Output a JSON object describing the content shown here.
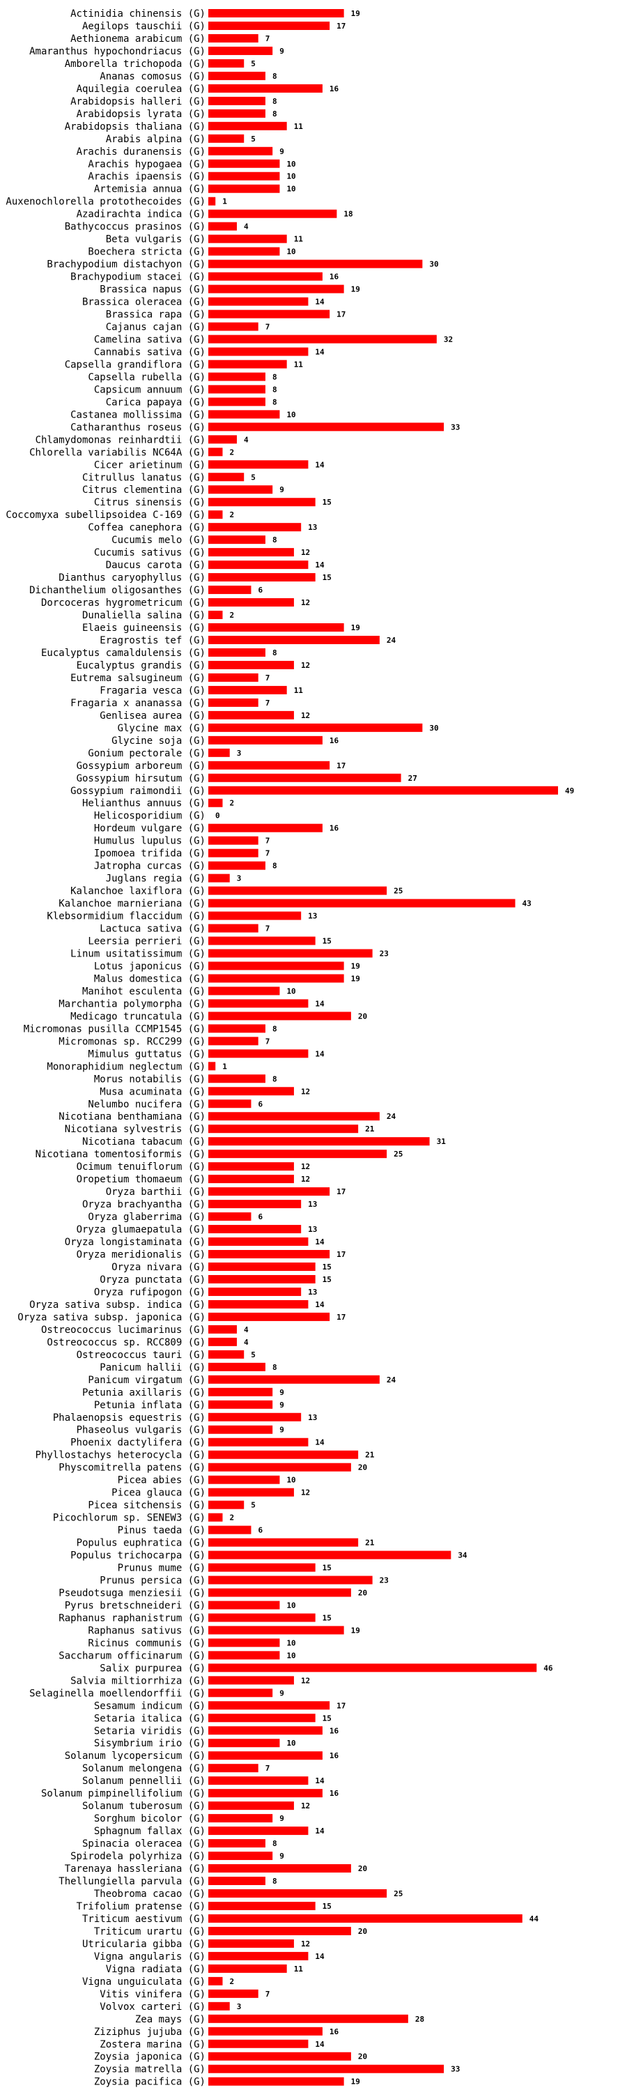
{
  "chart_data": {
    "type": "bar",
    "orientation": "horizontal",
    "title": "",
    "xlabel": "",
    "ylabel": "",
    "bar_color": "#ff0000",
    "label_suffix": "(G)",
    "xlim": [
      0,
      49
    ],
    "categories": [
      "Actinidia chinensis",
      "Aegilops tauschii",
      "Aethionema arabicum",
      "Amaranthus hypochondriacus",
      "Amborella trichopoda",
      "Ananas comosus",
      "Aquilegia coerulea",
      "Arabidopsis halleri",
      "Arabidopsis lyrata",
      "Arabidopsis thaliana",
      "Arabis alpina",
      "Arachis duranensis",
      "Arachis hypogaea",
      "Arachis ipaensis",
      "Artemisia annua",
      "Auxenochlorella protothecoides",
      "Azadirachta indica",
      "Bathycoccus prasinos",
      "Beta vulgaris",
      "Boechera stricta",
      "Brachypodium distachyon",
      "Brachypodium stacei",
      "Brassica napus",
      "Brassica oleracea",
      "Brassica rapa",
      "Cajanus cajan",
      "Camelina sativa",
      "Cannabis sativa",
      "Capsella grandiflora",
      "Capsella rubella",
      "Capsicum annuum",
      "Carica papaya",
      "Castanea mollissima",
      "Catharanthus roseus",
      "Chlamydomonas reinhardtii",
      "Chlorella variabilis NC64A",
      "Cicer arietinum",
      "Citrullus lanatus",
      "Citrus clementina",
      "Citrus sinensis",
      "Coccomyxa subellipsoidea C-169",
      "Coffea canephora",
      "Cucumis melo",
      "Cucumis sativus",
      "Daucus carota",
      "Dianthus caryophyllus",
      "Dichanthelium oligosanthes",
      "Dorcoceras hygrometricum",
      "Dunaliella salina",
      "Elaeis guineensis",
      "Eragrostis tef",
      "Eucalyptus camaldulensis",
      "Eucalyptus grandis",
      "Eutrema salsugineum",
      "Fragaria vesca",
      "Fragaria x ananassa",
      "Genlisea aurea",
      "Glycine max",
      "Glycine soja",
      "Gonium pectorale",
      "Gossypium arboreum",
      "Gossypium hirsutum",
      "Gossypium raimondii",
      "Helianthus annuus",
      "Helicosporidium",
      "Hordeum vulgare",
      "Humulus lupulus",
      "Ipomoea trifida",
      "Jatropha curcas",
      "Juglans regia",
      "Kalanchoe laxiflora",
      "Kalanchoe marnieriana",
      "Klebsormidium flaccidum",
      "Lactuca sativa",
      "Leersia perrieri",
      "Linum usitatissimum",
      "Lotus japonicus",
      "Malus domestica",
      "Manihot esculenta",
      "Marchantia polymorpha",
      "Medicago truncatula",
      "Micromonas pusilla CCMP1545",
      "Micromonas sp. RCC299",
      "Mimulus guttatus",
      "Monoraphidium neglectum",
      "Morus notabilis",
      "Musa acuminata",
      "Nelumbo nucifera",
      "Nicotiana benthamiana",
      "Nicotiana sylvestris",
      "Nicotiana tabacum",
      "Nicotiana tomentosiformis",
      "Ocimum tenuiflorum",
      "Oropetium thomaeum",
      "Oryza barthii",
      "Oryza brachyantha",
      "Oryza glaberrima",
      "Oryza glumaepatula",
      "Oryza longistaminata",
      "Oryza meridionalis",
      "Oryza nivara",
      "Oryza punctata",
      "Oryza rufipogon",
      "Oryza sativa subsp. indica",
      "Oryza sativa subsp. japonica",
      "Ostreococcus lucimarinus",
      "Ostreococcus sp. RCC809",
      "Ostreococcus tauri",
      "Panicum hallii",
      "Panicum virgatum",
      "Petunia axillaris",
      "Petunia inflata",
      "Phalaenopsis equestris",
      "Phaseolus vulgaris",
      "Phoenix dactylifera",
      "Phyllostachys heterocycla",
      "Physcomitrella patens",
      "Picea abies",
      "Picea glauca",
      "Picea sitchensis",
      "Picochlorum sp. SENEW3",
      "Pinus taeda",
      "Populus euphratica",
      "Populus trichocarpa",
      "Prunus mume",
      "Prunus persica",
      "Pseudotsuga menziesii",
      "Pyrus bretschneideri",
      "Raphanus raphanistrum",
      "Raphanus sativus",
      "Ricinus communis",
      "Saccharum officinarum",
      "Salix purpurea",
      "Salvia miltiorrhiza",
      "Selaginella moellendorffii",
      "Sesamum indicum",
      "Setaria italica",
      "Setaria viridis",
      "Sisymbrium irio",
      "Solanum lycopersicum",
      "Solanum melongena",
      "Solanum pennellii",
      "Solanum pimpinellifolium",
      "Solanum tuberosum",
      "Sorghum bicolor",
      "Sphagnum fallax",
      "Spinacia oleracea",
      "Spirodela polyrhiza",
      "Tarenaya hassleriana",
      "Thellungiella parvula",
      "Theobroma cacao",
      "Trifolium pratense",
      "Triticum aestivum",
      "Triticum urartu",
      "Utricularia gibba",
      "Vigna angularis",
      "Vigna radiata",
      "Vigna unguiculata",
      "Vitis vinifera",
      "Volvox carteri",
      "Zea mays",
      "Ziziphus jujuba",
      "Zostera marina",
      "Zoysia japonica",
      "Zoysia matrella",
      "Zoysia pacifica"
    ],
    "values": [
      19,
      17,
      7,
      9,
      5,
      8,
      16,
      8,
      8,
      11,
      5,
      9,
      10,
      10,
      10,
      1,
      18,
      4,
      11,
      10,
      30,
      16,
      19,
      14,
      17,
      7,
      32,
      14,
      11,
      8,
      8,
      8,
      10,
      33,
      4,
      2,
      14,
      5,
      9,
      15,
      2,
      13,
      8,
      12,
      14,
      15,
      6,
      12,
      2,
      19,
      24,
      8,
      12,
      7,
      11,
      7,
      12,
      30,
      16,
      3,
      17,
      27,
      49,
      2,
      0,
      16,
      7,
      7,
      8,
      3,
      25,
      43,
      13,
      7,
      15,
      23,
      19,
      19,
      10,
      14,
      20,
      8,
      7,
      14,
      1,
      8,
      12,
      6,
      24,
      21,
      31,
      25,
      12,
      12,
      17,
      13,
      6,
      13,
      14,
      17,
      15,
      15,
      13,
      14,
      17,
      4,
      4,
      5,
      8,
      24,
      9,
      9,
      13,
      9,
      14,
      21,
      20,
      10,
      12,
      5,
      2,
      6,
      21,
      34,
      15,
      23,
      20,
      10,
      15,
      19,
      10,
      10,
      46,
      12,
      9,
      17,
      15,
      16,
      10,
      16,
      7,
      14,
      16,
      12,
      9,
      14,
      8,
      9,
      20,
      8,
      25,
      15,
      44,
      20,
      12,
      14,
      11,
      2,
      7,
      3,
      28,
      16,
      14,
      20,
      33,
      19
    ]
  }
}
